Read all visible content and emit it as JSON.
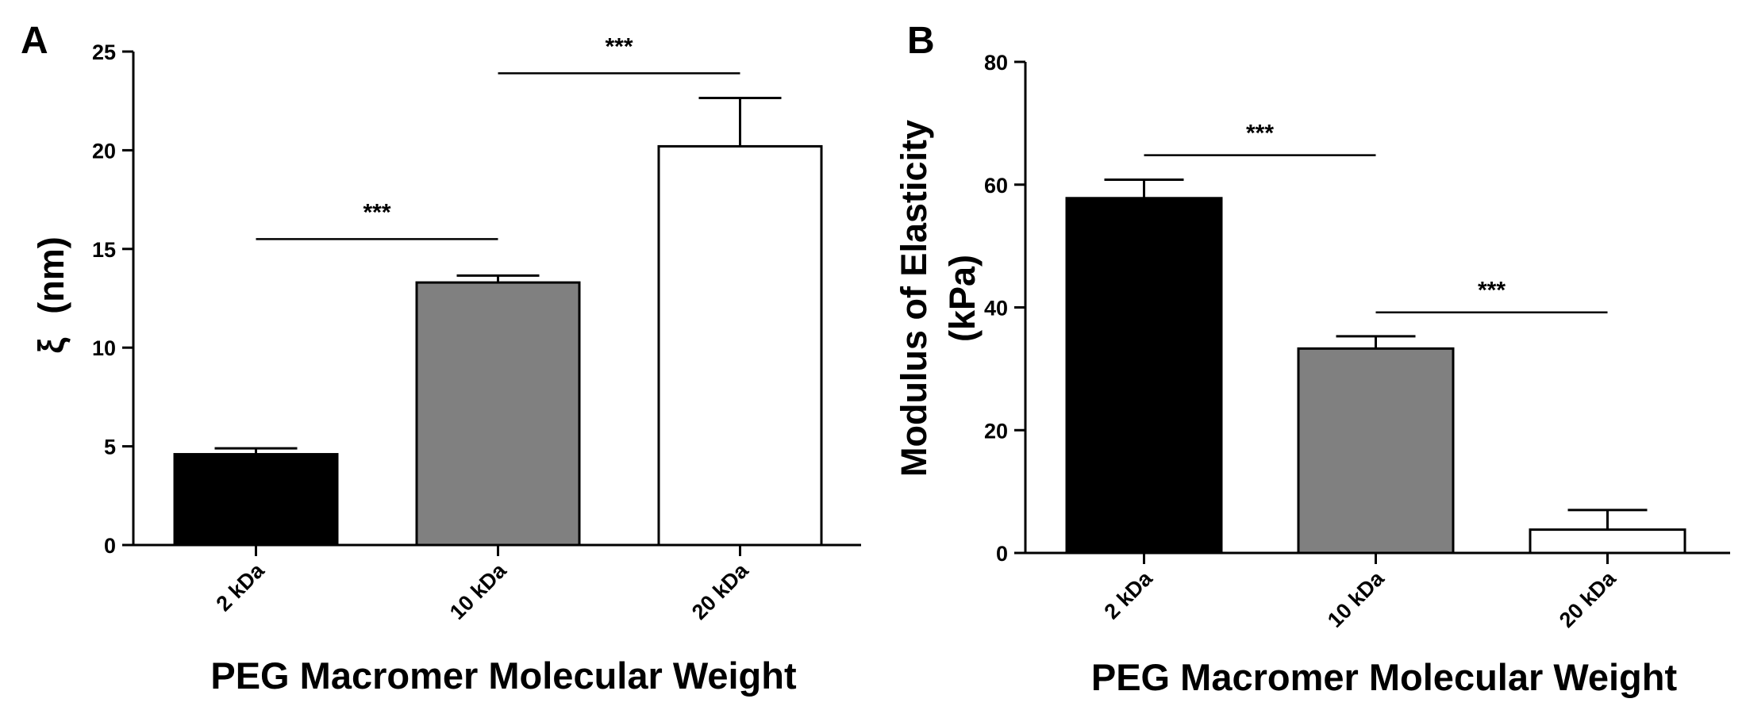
{
  "chart_data": [
    {
      "panel": "A",
      "type": "bar",
      "categories": [
        "2 kDa",
        "10 kDa",
        "20 kDa"
      ],
      "values": [
        4.6,
        13.3,
        20.2
      ],
      "errors": [
        0.3,
        0.35,
        2.45
      ],
      "bar_colors": [
        "#000000",
        "#808080",
        "#ffffff"
      ],
      "ylabel": "ξ (nm)",
      "ylabel_symbol": "ξ",
      "ylabel_unit": "(nm)",
      "xlabel": "PEG Macromer Molecular Weight",
      "ylim": [
        0,
        25
      ],
      "yticks": [
        0,
        5,
        10,
        15,
        20,
        25
      ],
      "grid": false,
      "significance": [
        {
          "from": "2 kDa",
          "to": "10 kDa",
          "y": 15.5,
          "label": "***"
        },
        {
          "from": "10 kDa",
          "to": "20 kDa",
          "y": 23.9,
          "label": "***"
        }
      ]
    },
    {
      "panel": "B",
      "type": "bar",
      "categories": [
        "2 kDa",
        "10 kDa",
        "20 kDa"
      ],
      "values": [
        57.8,
        33.3,
        3.8
      ],
      "errors": [
        3.0,
        2.0,
        3.2
      ],
      "bar_colors": [
        "#000000",
        "#808080",
        "#ffffff"
      ],
      "ylabel": "Modulus of Elasticity (kPa)",
      "ylabel_line1": "Modulus of Elasticity",
      "ylabel_line2": "(kPa)",
      "xlabel": "PEG Macromer Molecular Weight",
      "ylim": [
        0,
        80
      ],
      "yticks": [
        0,
        20,
        40,
        60,
        80
      ],
      "grid": false,
      "significance": [
        {
          "from": "2 kDa",
          "to": "10 kDa",
          "y": 64.8,
          "label": "***"
        },
        {
          "from": "10 kDa",
          "to": "20 kDa",
          "y": 39.2,
          "label": "***"
        }
      ]
    }
  ]
}
